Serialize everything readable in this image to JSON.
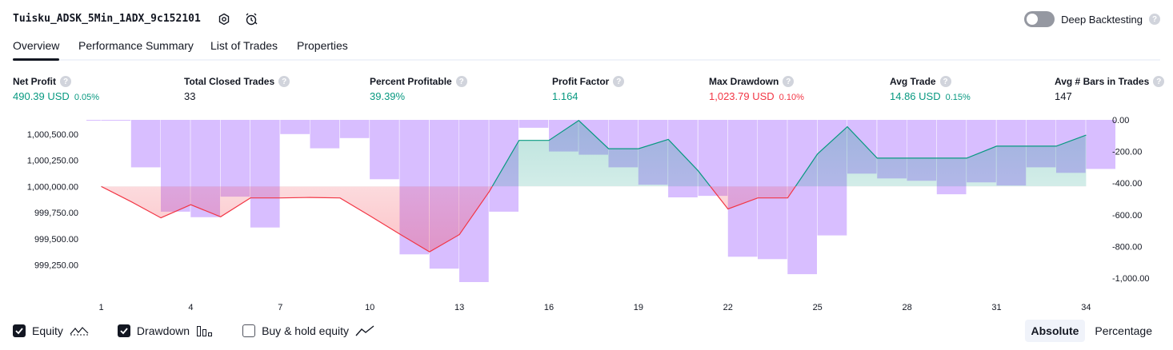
{
  "header": {
    "title": "Tuisku_ADSK_5Min_1ADX_9c152101",
    "deep_backtesting_label": "Deep Backtesting",
    "deep_backtesting_enabled": false
  },
  "tabs": [
    {
      "label": "Overview",
      "active": true
    },
    {
      "label": "Performance Summary",
      "active": false
    },
    {
      "label": "List of Trades",
      "active": false
    },
    {
      "label": "Properties",
      "active": false
    }
  ],
  "metrics": [
    {
      "label": "Net Profit",
      "value": "490.39 USD",
      "pct": "0.05%",
      "color": "#089981"
    },
    {
      "label": "Total Closed Trades",
      "value": "33",
      "pct": "",
      "color": "#131722"
    },
    {
      "label": "Percent Profitable",
      "value": "39.39%",
      "pct": "",
      "color": "#089981"
    },
    {
      "label": "Profit Factor",
      "value": "1.164",
      "pct": "",
      "color": "#089981"
    },
    {
      "label": "Max Drawdown",
      "value": "1,023.79 USD",
      "pct": "0.10%",
      "color": "#f23645"
    },
    {
      "label": "Avg Trade",
      "value": "14.86 USD",
      "pct": "0.15%",
      "color": "#089981"
    },
    {
      "label": "Avg # Bars in Trades",
      "value": "147",
      "pct": "",
      "color": "#131722"
    }
  ],
  "legend": {
    "equity_label": "Equity",
    "drawdown_label": "Drawdown",
    "buyhold_label": "Buy & hold equity",
    "equity_checked": true,
    "drawdown_checked": true,
    "buyhold_checked": false
  },
  "view_toggle": {
    "absolute_label": "Absolute",
    "percentage_label": "Percentage",
    "active": "Absolute"
  },
  "chart_data": {
    "type": "line",
    "x_ticks": [
      "1",
      "4",
      "7",
      "10",
      "13",
      "16",
      "19",
      "22",
      "25",
      "28",
      "31",
      "34"
    ],
    "y_left_ticks": [
      "1,000,500.00",
      "1,000,250.00",
      "1,000,000.00",
      "999,750.00",
      "999,500.00",
      "999,250.00"
    ],
    "y_right_ticks": [
      "0.00",
      "-200.00",
      "-400.00",
      "-600.00",
      "-800.00",
      "-1,000.00"
    ],
    "y_left_range": [
      999000,
      1000650
    ],
    "y_right_range": [
      -1100,
      0
    ],
    "baseline": 1000000,
    "colors": {
      "profit": "#089981",
      "loss": "#f23645",
      "drawdown": "#c9a5ff"
    },
    "equity": {
      "x": [
        1,
        2,
        3,
        4,
        5,
        6,
        7,
        8,
        9,
        10,
        11,
        12,
        13,
        14,
        15,
        16,
        17,
        18,
        19,
        20,
        21,
        22,
        23,
        24,
        25,
        26,
        27,
        28,
        29,
        30,
        31,
        32,
        33,
        34
      ],
      "values": [
        1000000,
        999855,
        999700,
        999825,
        999710,
        999890,
        999890,
        999895,
        999890,
        999720,
        999545,
        999375,
        999540,
        999950,
        1000440,
        1000440,
        1000630,
        1000360,
        1000360,
        1000450,
        1000150,
        999785,
        999890,
        999890,
        1000310,
        1000570,
        1000270,
        1000270,
        1000270,
        1000270,
        1000385,
        1000385,
        1000385,
        1000490
      ]
    },
    "drawdown": {
      "x": [
        0,
        1,
        2,
        3,
        4,
        5,
        6,
        7,
        8,
        9,
        10,
        11,
        12,
        13,
        14,
        15,
        16,
        17,
        18,
        19,
        20,
        21,
        22,
        23,
        24,
        25,
        26,
        27,
        28,
        29,
        30,
        31,
        32,
        33,
        34
      ],
      "values": [
        0,
        -5,
        -300,
        -580,
        -615,
        -485,
        -680,
        -90,
        -180,
        -115,
        -375,
        -850,
        -940,
        -1025,
        -580,
        -50,
        -200,
        -220,
        -300,
        -410,
        -490,
        -480,
        -865,
        -880,
        -975,
        -730,
        -340,
        -370,
        -385,
        -470,
        -395,
        -415,
        -300,
        -335,
        -310
      ]
    }
  }
}
